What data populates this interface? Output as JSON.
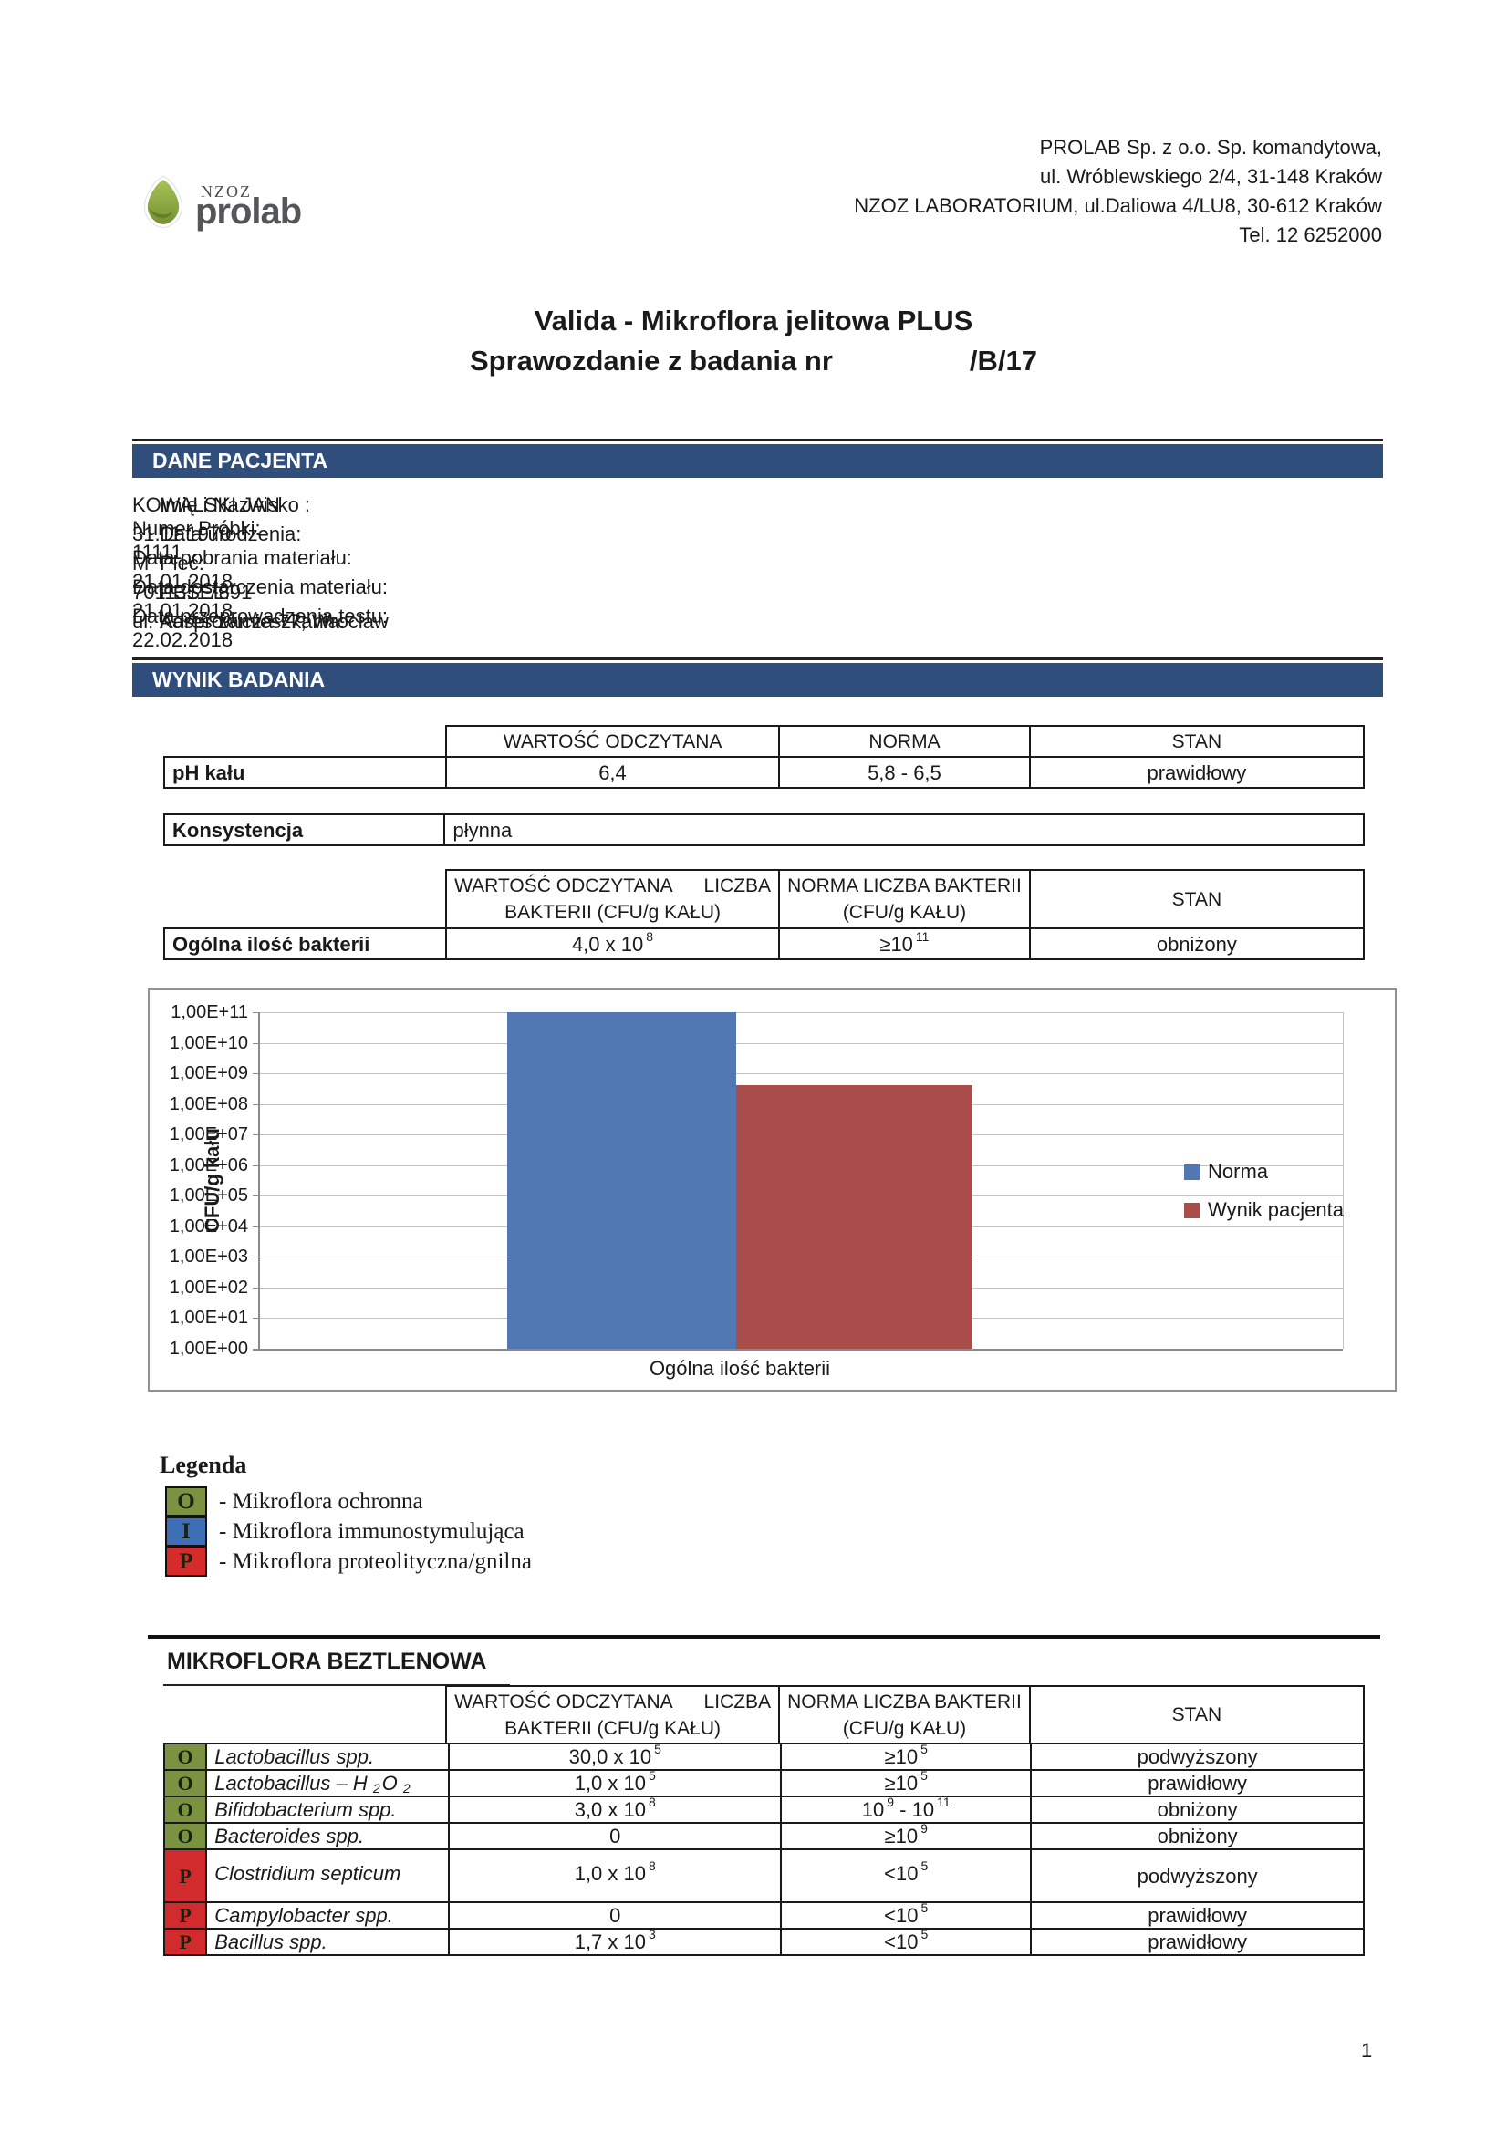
{
  "logo": {
    "nzoz": "NZOZ",
    "name": "prolab"
  },
  "header_address": [
    "PROLAB Sp. z o.o. Sp. komandytowa,",
    "ul. Wróblewskiego 2/4, 31-148 Kraków",
    "NZOZ LABORATORIUM, ul.Daliowa 4/LU8, 30-612 Kraków",
    "Tel. 12 6252000"
  ],
  "title": {
    "line1": "Valida - Mikroflora jelitowa PLUS",
    "line2_label": "Sprawozdanie z badania nr",
    "line2_number": "/B/17"
  },
  "sections": {
    "patient": "DANE PACJENTA",
    "result": "WYNIK BADANIA",
    "anaerobic": "MIKROFLORA BEZTLENOWA"
  },
  "patient": {
    "left": [
      {
        "label": "Imię i Nazwisko :",
        "value": "KOWALSKI  JAN"
      },
      {
        "label": "Data urodzenia:",
        "value": "31.11.1970"
      },
      {
        "label": "Płeć:",
        "value": "M"
      },
      {
        "label": "PESEL:",
        "value": "70113117891"
      },
      {
        "label": "Adres zamieszkania:",
        "value": "ul. Kasprowicza 77; Wrocław"
      }
    ],
    "right": [
      {
        "label": "Numer Próbki:",
        "value": "11111"
      },
      {
        "label": "Data pobrania materiału:",
        "value": "21.01.2018"
      },
      {
        "label": "Data dostarczenia materiału:",
        "value": "21.01.2018"
      },
      {
        "label": "Data przeprowadzenia testu:",
        "value": "22.02.2018"
      }
    ]
  },
  "simple_headers": [
    "WARTOŚĆ ODCZYTANA",
    "NORMA",
    "STAN"
  ],
  "bacteria_headers": {
    "col1": "WARTOŚĆ ODCZYTANA      LICZBA\nBAKTERII (CFU/g KAŁU)",
    "col2": "NORMA LICZBA BAKTERII\n(CFU/g KAŁU)",
    "col3": "STAN"
  },
  "ph_table": {
    "label": "pH kału",
    "value": "6,4",
    "norma": "5,8 - 6,5",
    "stan": "prawidłowy"
  },
  "consistency_table": {
    "label": "Konsystencja",
    "value": "płynna"
  },
  "total_table": {
    "label": "Ogólna ilość bakterii",
    "value_parts": [
      {
        "t": "4,0 x 10"
      },
      {
        "sup": "8"
      }
    ],
    "norma_parts": [
      {
        "t": "≥10"
      },
      {
        "sup": "11"
      }
    ],
    "stan": "obniżony"
  },
  "chart_data": {
    "type": "bar",
    "title": "",
    "categories": [
      "Ogólna ilość bakterii"
    ],
    "series": [
      {
        "name": "Norma",
        "color": "#5278B4",
        "values": [
          100000000000
        ]
      },
      {
        "name": "Wynik pacjenta",
        "color": "#A84D49",
        "values": [
          400000000
        ]
      }
    ],
    "xlabel": "Ogólna ilość bakterii",
    "ylabel": "CFU/g kału",
    "scale": "log",
    "ylim": [
      1,
      100000000000
    ],
    "yticks": [
      "1,00E+11",
      "1,00E+10",
      "1,00E+09",
      "1,00E+08",
      "1,00E+07",
      "1,00E+06",
      "1,00E+05",
      "1,00E+04",
      "1,00E+03",
      "1,00E+02",
      "1,00E+01",
      "1,00E+00"
    ],
    "grid": true,
    "legend_position": "right"
  },
  "legenda": {
    "title": "Legenda",
    "items": [
      {
        "letter": "O",
        "color": "#7B9340",
        "label": "- Mikroflora ochronna"
      },
      {
        "letter": "I",
        "color": "#3D6EB6",
        "label": "- Mikroflora immunostymulująca"
      },
      {
        "letter": "P",
        "color": "#D52B2B",
        "label": "- Mikroflora proteolityczna/gnilna"
      }
    ]
  },
  "marker_colors": {
    "O": "#7B9340",
    "P": "#D22B2E"
  },
  "microflora_rows": [
    {
      "marker": "O",
      "name_parts": [
        {
          "t": "Lactobacillus spp.",
          "i": true
        }
      ],
      "value_parts": [
        {
          "t": "30,0 x 10"
        },
        {
          "sup": "5"
        }
      ],
      "norma_parts": [
        {
          "t": "≥10"
        },
        {
          "sup": "5"
        }
      ],
      "stan": "podwyższony",
      "tall": false
    },
    {
      "marker": "O",
      "name_parts": [
        {
          "t": "Lactobacillus – H ",
          "i": true
        },
        {
          "sub": "2",
          "i": true
        },
        {
          "t": "O ",
          "i": true
        },
        {
          "sub": "2",
          "i": true
        }
      ],
      "value_parts": [
        {
          "t": "1,0 x 10"
        },
        {
          "sup": "5"
        }
      ],
      "norma_parts": [
        {
          "t": "≥10"
        },
        {
          "sup": "5"
        }
      ],
      "stan": "prawidłowy",
      "tall": false
    },
    {
      "marker": "O",
      "name_parts": [
        {
          "t": "Bifidobacterium spp.",
          "i": true
        }
      ],
      "value_parts": [
        {
          "t": "3,0 x 10"
        },
        {
          "sup": "8"
        }
      ],
      "norma_parts": [
        {
          "t": "10"
        },
        {
          "sup": "9"
        },
        {
          "t": " - 10"
        },
        {
          "sup": "11"
        }
      ],
      "stan": "obniżony",
      "tall": false
    },
    {
      "marker": "O",
      "name_parts": [
        {
          "t": "Bacteroides spp.",
          "i": true
        }
      ],
      "value_parts": [
        {
          "t": "0"
        }
      ],
      "norma_parts": [
        {
          "t": "≥10"
        },
        {
          "sup": "9"
        }
      ],
      "stan": "obniżony",
      "tall": false
    },
    {
      "marker": "P",
      "name_parts": [
        {
          "t": "Clostridium septicum",
          "i": true
        }
      ],
      "value_parts": [
        {
          "t": "1,0 x 10"
        },
        {
          "sup": "8"
        }
      ],
      "norma_parts": [
        {
          "t": "<10"
        },
        {
          "sup": "5"
        }
      ],
      "stan": "podwyższony",
      "tall": true
    },
    {
      "marker": "P",
      "name_parts": [
        {
          "t": "Campylobacter spp.",
          "i": true
        }
      ],
      "value_parts": [
        {
          "t": "0"
        }
      ],
      "norma_parts": [
        {
          "t": "<10"
        },
        {
          "sup": "5"
        }
      ],
      "stan": "prawidłowy",
      "tall": false
    },
    {
      "marker": "P",
      "name_parts": [
        {
          "t": "Bacillus spp.",
          "i": true
        }
      ],
      "value_parts": [
        {
          "t": "1,7 x 10"
        },
        {
          "sup": "3"
        }
      ],
      "norma_parts": [
        {
          "t": "<10"
        },
        {
          "sup": "5"
        }
      ],
      "stan": "prawidłowy",
      "tall": false
    }
  ],
  "page": {
    "number": "1"
  }
}
